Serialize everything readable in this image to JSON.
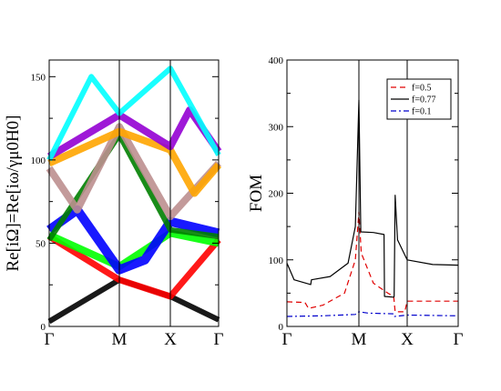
{
  "chart_data": [
    {
      "type": "line",
      "subtype": "band-structure",
      "ylabel": "Re[iΩ]=Re[iω/γμ0H0]",
      "ylim": [
        0,
        160
      ],
      "yticks": [
        0,
        50,
        100,
        150
      ],
      "xticks": [
        "Γ",
        "M",
        "X",
        "Γ"
      ],
      "grid": false,
      "series": [
        {
          "color": "#000000",
          "points": [
            [
              0,
              3
            ],
            [
              1,
              28
            ],
            [
              2,
              18
            ],
            [
              3,
              4
            ]
          ],
          "width": 6
        },
        {
          "color": "#ff0000",
          "points": [
            [
              0,
              54
            ],
            [
              1,
              28
            ],
            [
              2,
              18
            ],
            [
              3,
              52
            ]
          ],
          "width": 7
        },
        {
          "color": "#00ff00",
          "points": [
            [
              0,
              55
            ],
            [
              1,
              36
            ],
            [
              2,
              56
            ],
            [
              3,
              50
            ]
          ],
          "width": 8
        },
        {
          "color": "#0000ff",
          "points": [
            [
              0,
              58
            ],
            [
              0.4,
              70
            ],
            [
              1,
              34
            ],
            [
              1.5,
              40
            ],
            [
              2,
              63
            ],
            [
              3,
              56
            ]
          ],
          "width": 10
        },
        {
          "color": "#008000",
          "points": [
            [
              0,
              52
            ],
            [
              1,
              115
            ],
            [
              2,
              58
            ],
            [
              3,
              54
            ]
          ],
          "width": 6
        },
        {
          "color": "#bc8f8f",
          "points": [
            [
              0,
              95
            ],
            [
              0.4,
              70
            ],
            [
              1,
              120
            ],
            [
              2,
              66
            ],
            [
              3,
              98
            ]
          ],
          "width": 8
        },
        {
          "color": "#ffa500",
          "points": [
            [
              0,
              98
            ],
            [
              1,
              117
            ],
            [
              2,
              106
            ],
            [
              2.5,
              80
            ],
            [
              3,
              97
            ]
          ],
          "width": 8
        },
        {
          "color": "#9400d3",
          "points": [
            [
              0,
              102
            ],
            [
              1,
              127
            ],
            [
              2,
              108
            ],
            [
              2.4,
              130
            ],
            [
              3,
              105
            ]
          ],
          "width": 8
        },
        {
          "color": "#00ffff",
          "points": [
            [
              0,
              100
            ],
            [
              0.6,
              150
            ],
            [
              1,
              128
            ],
            [
              2,
              155
            ],
            [
              3,
              103
            ]
          ],
          "width": 6
        }
      ]
    },
    {
      "type": "line",
      "ylabel": "FOM",
      "ylim": [
        0,
        400
      ],
      "yticks": [
        0,
        100,
        200,
        300,
        400
      ],
      "xticks": [
        "Γ",
        "M",
        "X",
        "Γ"
      ],
      "grid": false,
      "legend_position": "top-right",
      "series": [
        {
          "name": "f=0.5",
          "color": "#e00000",
          "dash": "6,4",
          "points": [
            [
              0,
              37
            ],
            [
              0.25,
              36
            ],
            [
              0.3,
              27
            ],
            [
              0.5,
              32
            ],
            [
              0.8,
              50
            ],
            [
              0.95,
              100
            ],
            [
              1,
              172
            ],
            [
              1.05,
              110
            ],
            [
              1.3,
              65
            ],
            [
              1.6,
              50
            ],
            [
              1.72,
              45
            ],
            [
              1.75,
              22
            ],
            [
              1.95,
              22
            ],
            [
              2,
              38
            ],
            [
              3,
              38
            ]
          ]
        },
        {
          "name": "f=0.77",
          "color": "#000000",
          "dash": "",
          "points": [
            [
              0,
              95
            ],
            [
              0.1,
              70
            ],
            [
              0.33,
              63
            ],
            [
              0.34,
              70
            ],
            [
              0.6,
              75
            ],
            [
              0.85,
              95
            ],
            [
              0.95,
              150
            ],
            [
              1,
              340
            ],
            [
              1.04,
              142
            ],
            [
              1.3,
              141
            ],
            [
              1.52,
              138
            ],
            [
              1.53,
              45
            ],
            [
              1.72,
              44
            ],
            [
              1.73,
              45
            ],
            [
              1.75,
              197
            ],
            [
              1.8,
              130
            ],
            [
              2,
              100
            ],
            [
              2.5,
              93
            ],
            [
              3,
              92
            ]
          ]
        },
        {
          "name": "f=0.1",
          "color": "#0000cc",
          "dash": "6,3,2,3",
          "points": [
            [
              0,
              15
            ],
            [
              0.5,
              16
            ],
            [
              0.95,
              18
            ],
            [
              1,
              22
            ],
            [
              1.2,
              20
            ],
            [
              1.72,
              19
            ],
            [
              1.74,
              15
            ],
            [
              2,
              17
            ],
            [
              3,
              16
            ]
          ]
        }
      ]
    }
  ]
}
